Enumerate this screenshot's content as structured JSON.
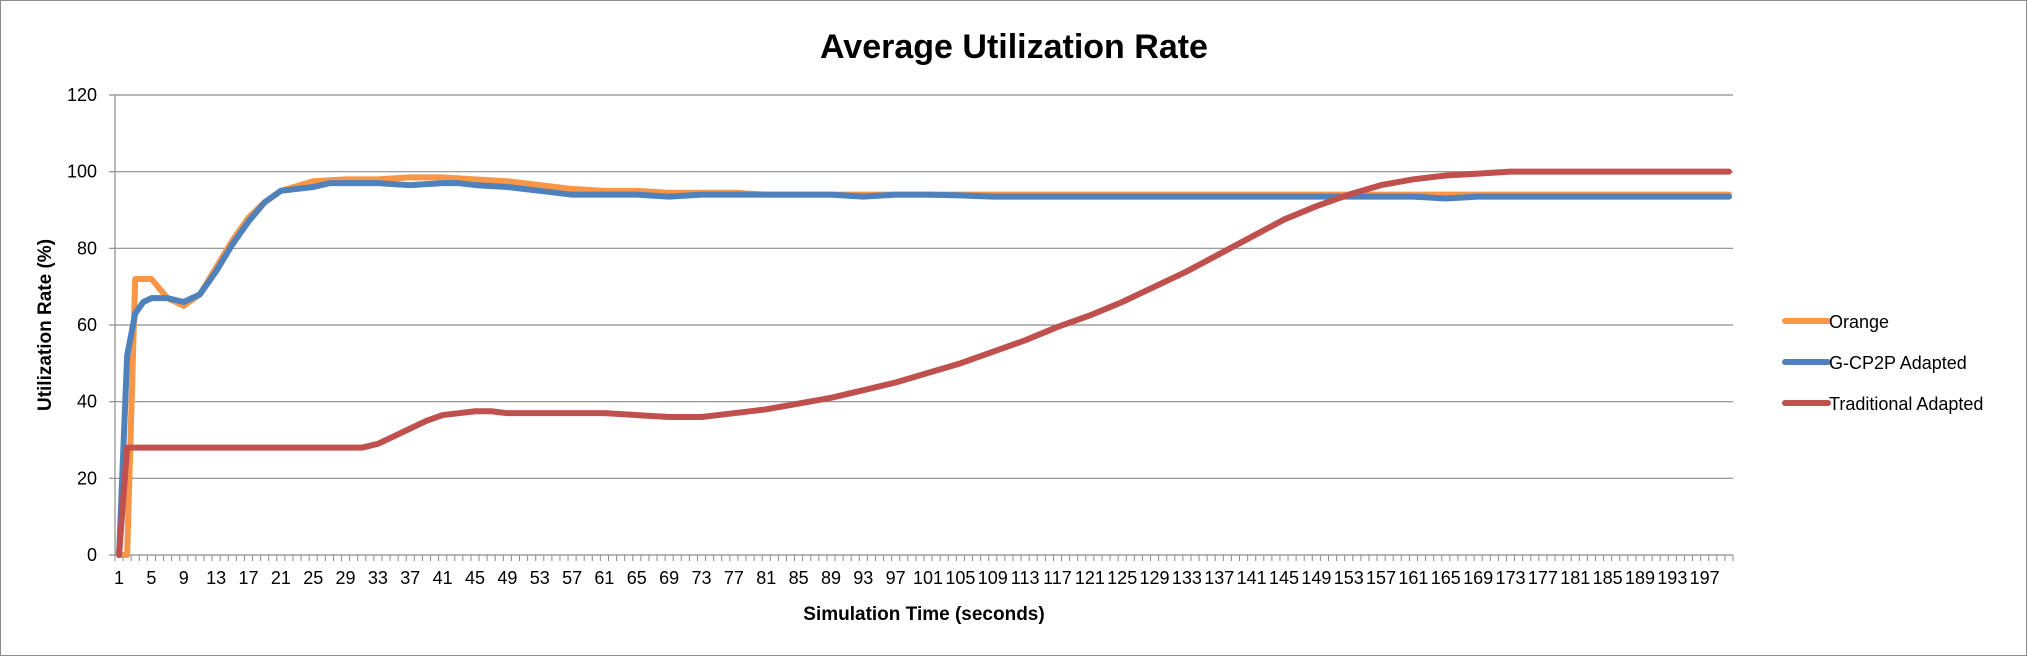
{
  "chart_data": {
    "type": "line",
    "title": "Average Utilization Rate",
    "xlabel": "Simulation Time (seconds)",
    "ylabel": "Utilization Rate (%)",
    "ylim": [
      0,
      120
    ],
    "yticks": [
      0,
      20,
      40,
      60,
      80,
      100,
      120
    ],
    "x_start": 1,
    "x_end": 200,
    "x_tick_labels": [
      "1",
      "5",
      "9",
      "13",
      "17",
      "21",
      "25",
      "29",
      "33",
      "37",
      "41",
      "45",
      "49",
      "53",
      "57",
      "61",
      "65",
      "69",
      "73",
      "77",
      "81",
      "85",
      "89",
      "93",
      "97",
      "101",
      "105",
      "109",
      "113",
      "117",
      "121",
      "125",
      "129",
      "133",
      "137",
      "141",
      "145",
      "149",
      "153",
      "157",
      "161",
      "165",
      "169",
      "173",
      "177",
      "181",
      "185",
      "189",
      "193",
      "197"
    ],
    "grid": "horizontal",
    "legend_position": "right",
    "series": [
      {
        "name": "Orange",
        "color": "#F79646",
        "points": [
          [
            1,
            0
          ],
          [
            2,
            0
          ],
          [
            3,
            72
          ],
          [
            5,
            72
          ],
          [
            7,
            67
          ],
          [
            9,
            65
          ],
          [
            11,
            68
          ],
          [
            13,
            75
          ],
          [
            15,
            82
          ],
          [
            17,
            88
          ],
          [
            19,
            92
          ],
          [
            21,
            95
          ],
          [
            25,
            97.5
          ],
          [
            29,
            98
          ],
          [
            33,
            98
          ],
          [
            37,
            98.5
          ],
          [
            41,
            98.5
          ],
          [
            45,
            98
          ],
          [
            49,
            97.5
          ],
          [
            53,
            96.5
          ],
          [
            57,
            95.5
          ],
          [
            61,
            95
          ],
          [
            65,
            95
          ],
          [
            69,
            94.5
          ],
          [
            73,
            94.5
          ],
          [
            77,
            94.5
          ],
          [
            81,
            94
          ],
          [
            85,
            94
          ],
          [
            89,
            94
          ],
          [
            93,
            94
          ],
          [
            97,
            94
          ],
          [
            101,
            94
          ],
          [
            105,
            94
          ],
          [
            109,
            94
          ],
          [
            113,
            94
          ],
          [
            117,
            94
          ],
          [
            121,
            94
          ],
          [
            125,
            94
          ],
          [
            129,
            94
          ],
          [
            133,
            94
          ],
          [
            137,
            94
          ],
          [
            141,
            94
          ],
          [
            145,
            94
          ],
          [
            149,
            94
          ],
          [
            153,
            94
          ],
          [
            157,
            94
          ],
          [
            161,
            94
          ],
          [
            165,
            94
          ],
          [
            169,
            94
          ],
          [
            173,
            94
          ],
          [
            177,
            94
          ],
          [
            181,
            94
          ],
          [
            185,
            94
          ],
          [
            189,
            94
          ],
          [
            193,
            94
          ],
          [
            197,
            94
          ],
          [
            200,
            94
          ]
        ]
      },
      {
        "name": "G-CP2P Adapted",
        "color": "#4F81BD",
        "points": [
          [
            1,
            0
          ],
          [
            2,
            52
          ],
          [
            3,
            63
          ],
          [
            4,
            66
          ],
          [
            5,
            67
          ],
          [
            7,
            67
          ],
          [
            9,
            66
          ],
          [
            11,
            68
          ],
          [
            13,
            74
          ],
          [
            15,
            81
          ],
          [
            17,
            87
          ],
          [
            19,
            92
          ],
          [
            21,
            95
          ],
          [
            25,
            96
          ],
          [
            27,
            97
          ],
          [
            33,
            97
          ],
          [
            37,
            96.5
          ],
          [
            41,
            97
          ],
          [
            43,
            97
          ],
          [
            45,
            96.5
          ],
          [
            49,
            96
          ],
          [
            53,
            95
          ],
          [
            57,
            94
          ],
          [
            61,
            94
          ],
          [
            65,
            94
          ],
          [
            69,
            93.5
          ],
          [
            73,
            94
          ],
          [
            77,
            94
          ],
          [
            81,
            94
          ],
          [
            85,
            94
          ],
          [
            89,
            94
          ],
          [
            93,
            93.5
          ],
          [
            97,
            94
          ],
          [
            101,
            94
          ],
          [
            105,
            93.8
          ],
          [
            109,
            93.5
          ],
          [
            113,
            93.5
          ],
          [
            117,
            93.5
          ],
          [
            121,
            93.5
          ],
          [
            125,
            93.5
          ],
          [
            129,
            93.5
          ],
          [
            133,
            93.5
          ],
          [
            137,
            93.5
          ],
          [
            141,
            93.5
          ],
          [
            145,
            93.5
          ],
          [
            149,
            93.5
          ],
          [
            153,
            93.5
          ],
          [
            157,
            93.5
          ],
          [
            161,
            93.5
          ],
          [
            165,
            93
          ],
          [
            169,
            93.5
          ],
          [
            173,
            93.5
          ],
          [
            177,
            93.5
          ],
          [
            181,
            93.5
          ],
          [
            185,
            93.5
          ],
          [
            189,
            93.5
          ],
          [
            193,
            93.5
          ],
          [
            197,
            93.5
          ],
          [
            200,
            93.5
          ]
        ]
      },
      {
        "name": "Traditional Adapted",
        "color": "#C0504D",
        "points": [
          [
            1,
            0
          ],
          [
            2,
            28
          ],
          [
            5,
            28
          ],
          [
            9,
            28
          ],
          [
            13,
            28
          ],
          [
            17,
            28
          ],
          [
            21,
            28
          ],
          [
            25,
            28
          ],
          [
            29,
            28
          ],
          [
            31,
            28
          ],
          [
            33,
            29
          ],
          [
            35,
            31
          ],
          [
            37,
            33
          ],
          [
            39,
            35
          ],
          [
            41,
            36.5
          ],
          [
            43,
            37
          ],
          [
            45,
            37.5
          ],
          [
            47,
            37.5
          ],
          [
            49,
            37
          ],
          [
            53,
            37
          ],
          [
            57,
            37
          ],
          [
            61,
            37
          ],
          [
            65,
            36.5
          ],
          [
            69,
            36
          ],
          [
            73,
            36
          ],
          [
            77,
            37
          ],
          [
            81,
            38
          ],
          [
            85,
            39.5
          ],
          [
            89,
            41
          ],
          [
            93,
            43
          ],
          [
            97,
            45
          ],
          [
            101,
            47.5
          ],
          [
            105,
            50
          ],
          [
            109,
            53
          ],
          [
            113,
            56
          ],
          [
            117,
            59.5
          ],
          [
            121,
            62.5
          ],
          [
            125,
            66
          ],
          [
            129,
            70
          ],
          [
            133,
            74
          ],
          [
            137,
            78.5
          ],
          [
            141,
            83
          ],
          [
            145,
            87.5
          ],
          [
            149,
            91
          ],
          [
            153,
            94
          ],
          [
            157,
            96.5
          ],
          [
            161,
            98
          ],
          [
            165,
            99
          ],
          [
            169,
            99.5
          ],
          [
            173,
            100
          ],
          [
            177,
            100
          ],
          [
            181,
            100
          ],
          [
            185,
            100
          ],
          [
            189,
            100
          ],
          [
            193,
            100
          ],
          [
            197,
            100
          ],
          [
            200,
            100
          ]
        ]
      }
    ]
  }
}
